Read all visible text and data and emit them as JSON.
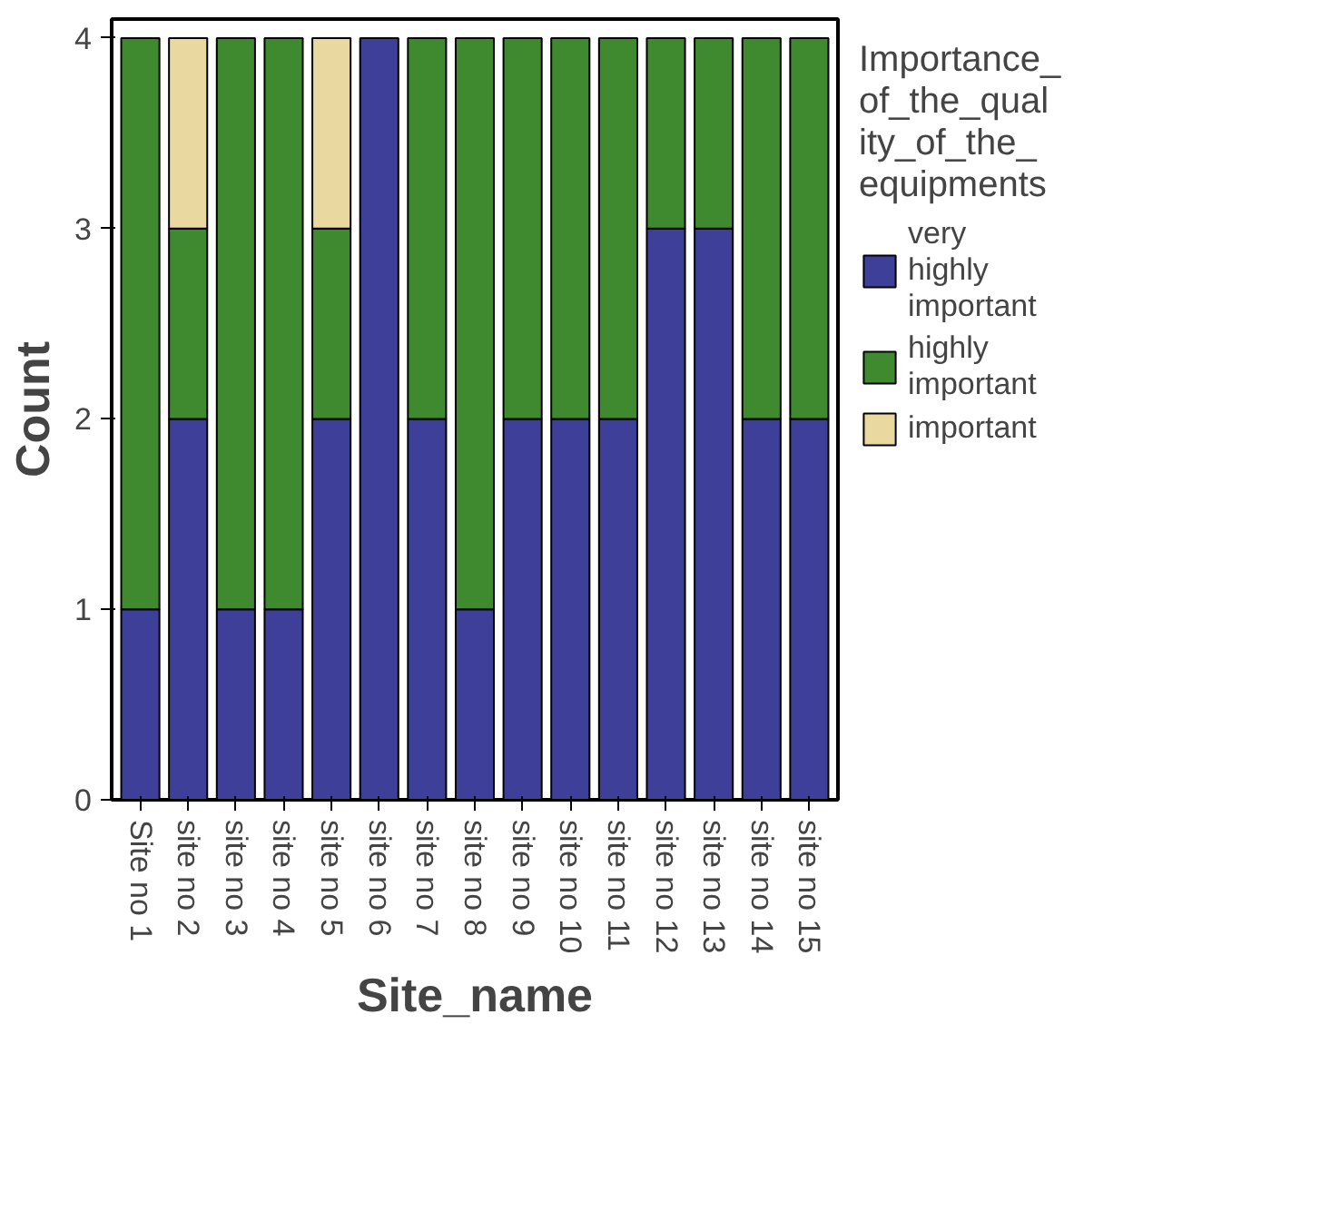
{
  "chart_data": {
    "type": "bar",
    "stacked": true,
    "xlabel": "Site_name",
    "ylabel": "Count",
    "legend_title": "Importance_of_the_quality_of_the_equipments",
    "categories": [
      "Site no 1",
      "site no 2",
      "site no 3",
      "site no 4",
      "site no 5",
      "site no 6",
      "site no 7",
      "site no 8",
      "site no 9",
      "site no 10",
      "site no 11",
      "site no 12",
      "site no 13",
      "site no 14",
      "site no 15"
    ],
    "series": [
      {
        "name": "very highly important",
        "color": "#3d3f98",
        "values": [
          1,
          2,
          1,
          1,
          2,
          4,
          2,
          1,
          2,
          2,
          2,
          3,
          3,
          2,
          2
        ]
      },
      {
        "name": "highly important",
        "color": "#3f8a2f",
        "values": [
          3,
          1,
          3,
          3,
          1,
          0,
          2,
          3,
          2,
          2,
          2,
          1,
          1,
          2,
          2
        ]
      },
      {
        "name": "important",
        "color": "#e9d9a0",
        "values": [
          0,
          1,
          0,
          0,
          1,
          0,
          0,
          0,
          0,
          0,
          0,
          0,
          0,
          0,
          0
        ]
      }
    ],
    "ylim": [
      0,
      4.1
    ],
    "yticks": [
      0,
      1,
      2,
      3,
      4
    ],
    "grid": false,
    "legend": "right"
  }
}
